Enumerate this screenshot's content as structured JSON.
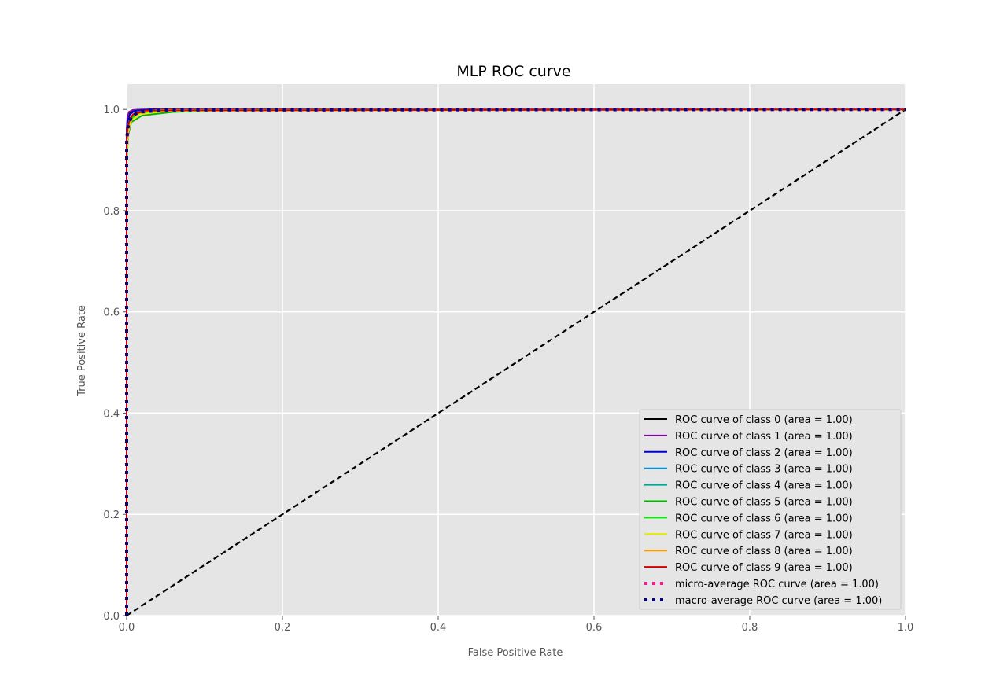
{
  "chart_data": {
    "type": "line",
    "title": "MLP ROC curve",
    "xlabel": "False Positive Rate",
    "ylabel": "True Positive Rate",
    "xlim": [
      0.0,
      1.0
    ],
    "ylim": [
      0.0,
      1.05
    ],
    "xticks": [
      "0.0",
      "0.2",
      "0.4",
      "0.6",
      "0.8",
      "1.0"
    ],
    "yticks": [
      "0.0",
      "0.2",
      "0.4",
      "0.6",
      "0.8",
      "1.0"
    ],
    "grid": true,
    "legend_position": "lower-right",
    "background": "#e5e5e5",
    "series": [
      {
        "name": "ROC curve of class 0 (area = 1.00)",
        "color": "#000000",
        "style": "solid",
        "x": [
          0,
          0,
          0.001,
          0.003,
          0.006,
          0.012,
          0.03,
          1.0
        ],
        "y": [
          0,
          0.93,
          0.975,
          0.99,
          0.996,
          0.999,
          1.0,
          1.0
        ]
      },
      {
        "name": "ROC curve of class 1 (area = 1.00)",
        "color": "#7e0b9e",
        "style": "solid",
        "x": [
          0,
          0,
          0.001,
          0.003,
          0.008,
          0.02,
          1.0
        ],
        "y": [
          0,
          0.96,
          0.985,
          0.995,
          0.999,
          1.0,
          1.0
        ]
      },
      {
        "name": "ROC curve of class 2 (area = 1.00)",
        "color": "#0000d0",
        "style": "solid",
        "x": [
          0,
          0,
          0.001,
          0.004,
          0.01,
          0.03,
          1.0
        ],
        "y": [
          0,
          0.94,
          0.975,
          0.99,
          0.997,
          1.0,
          1.0
        ]
      },
      {
        "name": "ROC curve of class 3 (area = 1.00)",
        "color": "#0090dc",
        "style": "solid",
        "x": [
          0,
          0,
          0.002,
          0.005,
          0.012,
          0.04,
          1.0
        ],
        "y": [
          0,
          0.93,
          0.97,
          0.985,
          0.994,
          0.999,
          1.0
        ]
      },
      {
        "name": "ROC curve of class 4 (area = 1.00)",
        "color": "#00a89a",
        "style": "solid",
        "x": [
          0,
          0,
          0.002,
          0.006,
          0.015,
          0.05,
          1.0
        ],
        "y": [
          0,
          0.92,
          0.965,
          0.983,
          0.993,
          0.998,
          1.0
        ]
      },
      {
        "name": "ROC curve of class 5 (area = 1.00)",
        "color": "#00b400",
        "style": "solid",
        "x": [
          0,
          0,
          0.002,
          0.006,
          0.02,
          0.06,
          0.15,
          1.0
        ],
        "y": [
          0,
          0.9,
          0.95,
          0.975,
          0.988,
          0.995,
          0.999,
          1.0
        ]
      },
      {
        "name": "ROC curve of class 6 (area = 1.00)",
        "color": "#00ec00",
        "style": "solid",
        "x": [
          0,
          0,
          0.002,
          0.006,
          0.015,
          0.05,
          1.0
        ],
        "y": [
          0,
          0.92,
          0.962,
          0.982,
          0.992,
          0.998,
          1.0
        ]
      },
      {
        "name": "ROC curve of class 7 (area = 1.00)",
        "color": "#e8e800",
        "style": "solid",
        "x": [
          0,
          0,
          0.002,
          0.006,
          0.016,
          0.05,
          1.0
        ],
        "y": [
          0,
          0.91,
          0.955,
          0.978,
          0.99,
          0.997,
          1.0
        ]
      },
      {
        "name": "ROC curve of class 8 (area = 1.00)",
        "color": "#ff9900",
        "style": "solid",
        "x": [
          0,
          0,
          0.002,
          0.005,
          0.012,
          0.04,
          1.0
        ],
        "y": [
          0,
          0.93,
          0.965,
          0.985,
          0.994,
          0.999,
          1.0
        ]
      },
      {
        "name": "ROC curve of class 9 (area = 1.00)",
        "color": "#d40000",
        "style": "solid",
        "x": [
          0,
          0,
          0.001,
          0.003,
          0.008,
          0.025,
          1.0
        ],
        "y": [
          0,
          0.94,
          0.96,
          0.975,
          0.99,
          0.998,
          1.0
        ]
      },
      {
        "name": "micro-average ROC curve (area = 1.00)",
        "color": "#ff1493",
        "style": "dotted",
        "x": [
          0,
          0,
          0.002,
          0.006,
          0.015,
          0.05,
          1.0
        ],
        "y": [
          0,
          0.93,
          0.965,
          0.985,
          0.994,
          0.999,
          1.0
        ]
      },
      {
        "name": "macro-average ROC curve (area = 1.00)",
        "color": "#000080",
        "style": "dotted",
        "x": [
          0,
          0,
          0.002,
          0.006,
          0.015,
          0.05,
          1.0
        ],
        "y": [
          0,
          0.94,
          0.968,
          0.986,
          0.995,
          0.999,
          1.0
        ]
      }
    ],
    "reference_line": {
      "x": [
        0,
        1
      ],
      "y": [
        0,
        1
      ],
      "color": "#000000",
      "style": "dashed"
    }
  }
}
